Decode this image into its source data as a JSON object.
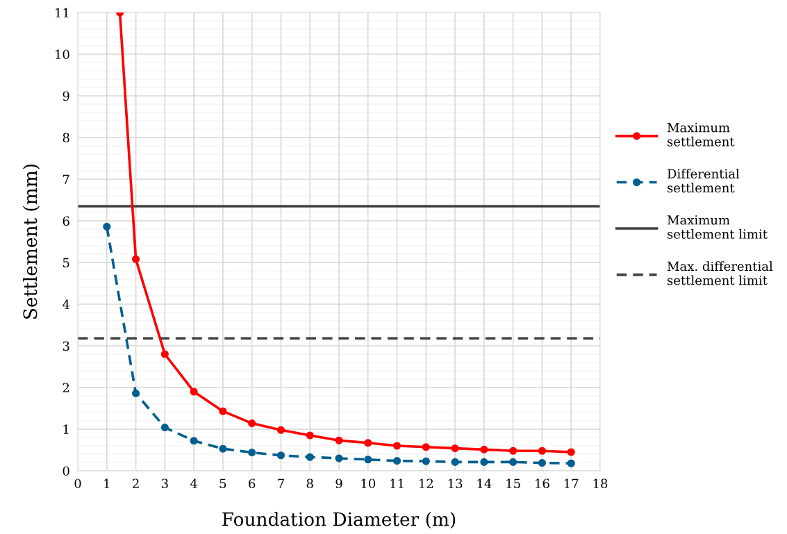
{
  "chart_data": {
    "type": "line",
    "xlabel": "Foundation Diameter (m)",
    "ylabel": "Settlement (mm)",
    "xlim": [
      0,
      18
    ],
    "xticks": [
      0,
      1,
      2,
      3,
      4,
      5,
      6,
      7,
      8,
      9,
      10,
      11,
      12,
      13,
      14,
      15,
      16,
      17,
      18
    ],
    "ylim": [
      0,
      11
    ],
    "yticks": [
      0,
      1,
      2,
      3,
      4,
      5,
      6,
      7,
      8,
      9,
      10,
      11
    ],
    "grid": true,
    "legend": "right",
    "marker": "circle",
    "series": [
      {
        "name": "Maximum\nsettlement",
        "color": "#ff0000",
        "line_style": "solid",
        "x": [
          1.45,
          2,
          3,
          4,
          5,
          6,
          7,
          8,
          9,
          10,
          11,
          12,
          13,
          14,
          15,
          16,
          17
        ],
        "values": [
          11,
          5.08,
          2.8,
          1.9,
          1.43,
          1.14,
          0.98,
          0.85,
          0.73,
          0.67,
          0.6,
          0.57,
          0.54,
          0.51,
          0.48,
          0.48,
          0.45
        ]
      },
      {
        "name": "Differential\nsettlement",
        "color": "#005f8f",
        "line_style": "dashed",
        "x": [
          1,
          2,
          3,
          4,
          5,
          6,
          7,
          8,
          9,
          10,
          11,
          12,
          13,
          14,
          15,
          16,
          17
        ],
        "values": [
          5.86,
          1.86,
          1.04,
          0.72,
          0.53,
          0.44,
          0.37,
          0.33,
          0.3,
          0.27,
          0.24,
          0.23,
          0.21,
          0.21,
          0.21,
          0.19,
          0.18
        ]
      }
    ],
    "ref_lines": [
      {
        "axis": "y",
        "value": 6.35,
        "label": "Maximum\nsettlement limit",
        "color": "#404040",
        "line_style": "solid"
      },
      {
        "axis": "y",
        "value": 3.18,
        "label": "Max. differential\nsettlement limit",
        "color": "#404040",
        "line_style": "dashed"
      }
    ]
  }
}
